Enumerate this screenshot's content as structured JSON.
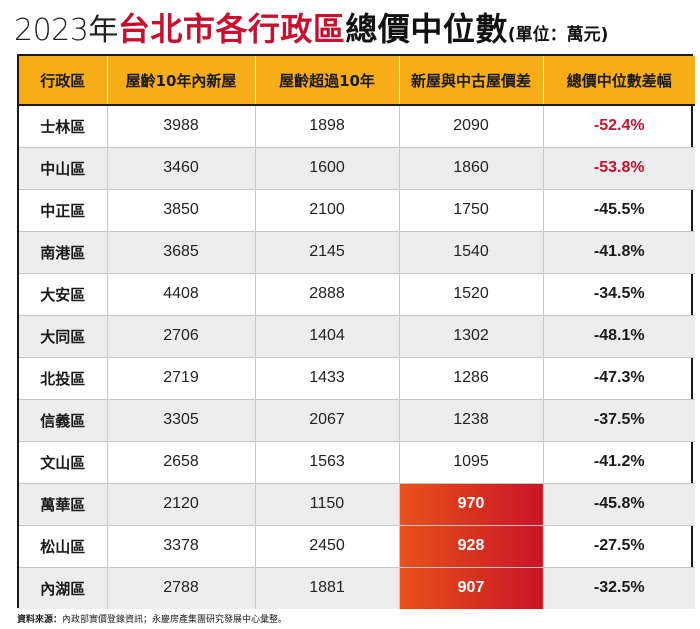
{
  "title": {
    "prefix": "2023年",
    "highlight": "台北市各行政區",
    "main": "總價中位數",
    "unit": "(單位：萬元)"
  },
  "table": {
    "headers": [
      "行政區",
      "屋齡10年內新屋",
      "屋齡超過10年",
      "新屋與中古屋價差",
      "總價中位數差幅"
    ],
    "rows": [
      {
        "district": "士林區",
        "new": "3988",
        "old": "1898",
        "diff": "2090",
        "pct": "-52.4%"
      },
      {
        "district": "中山區",
        "new": "3460",
        "old": "1600",
        "diff": "1860",
        "pct": "-53.8%"
      },
      {
        "district": "中正區",
        "new": "3850",
        "old": "2100",
        "diff": "1750",
        "pct": "-45.5%"
      },
      {
        "district": "南港區",
        "new": "3685",
        "old": "2145",
        "diff": "1540",
        "pct": "-41.8%"
      },
      {
        "district": "大安區",
        "new": "4408",
        "old": "2888",
        "diff": "1520",
        "pct": "-34.5%"
      },
      {
        "district": "大同區",
        "new": "2706",
        "old": "1404",
        "diff": "1302",
        "pct": "-48.1%"
      },
      {
        "district": "北投區",
        "new": "2719",
        "old": "1433",
        "diff": "1286",
        "pct": "-47.3%"
      },
      {
        "district": "信義區",
        "new": "3305",
        "old": "2067",
        "diff": "1238",
        "pct": "-37.5%"
      },
      {
        "district": "文山區",
        "new": "2658",
        "old": "1563",
        "diff": "1095",
        "pct": "-41.2%"
      },
      {
        "district": "萬華區",
        "new": "2120",
        "old": "1150",
        "diff": "970",
        "pct": "-45.8%"
      },
      {
        "district": "松山區",
        "new": "3378",
        "old": "2450",
        "diff": "928",
        "pct": "-27.5%"
      },
      {
        "district": "內湖區",
        "new": "2788",
        "old": "1881",
        "diff": "907",
        "pct": "-32.5%"
      }
    ]
  },
  "colors": {
    "header_bg": "#f6ad16",
    "title_red": "#c8102e",
    "highlight_cell": "#d63020",
    "shade_row": "#ededed"
  },
  "source": {
    "label": "資料來源：",
    "text": "內政部實價登錄資訊；永慶房產集團研究發展中心彙整。"
  }
}
